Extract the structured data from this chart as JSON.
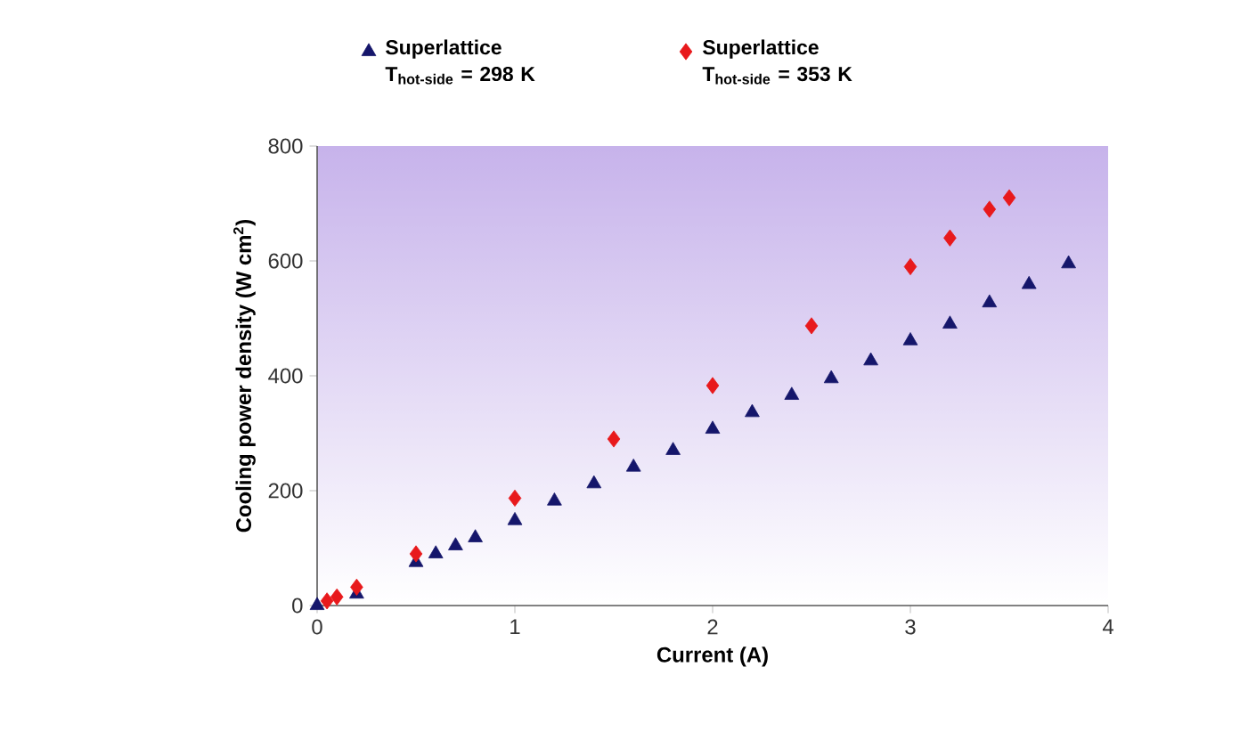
{
  "chart_data": {
    "type": "scatter",
    "xlabel": "Current (A)",
    "ylabel": "Cooling power density (W cm$^{2}$)",
    "xlim": [
      0,
      4
    ],
    "ylim": [
      0,
      800
    ],
    "xticks": [
      0,
      1,
      2,
      3,
      4
    ],
    "yticks": [
      0,
      200,
      400,
      600,
      800
    ],
    "grid": false,
    "legend": "top",
    "series": [
      {
        "name": "Superlattice T$_{hot-side}$ = 298 K",
        "color": "#15166b",
        "marker": "triangle",
        "x": [
          0,
          0.1,
          0.2,
          0.5,
          0.6,
          0.7,
          0.8,
          1.0,
          1.2,
          1.4,
          1.6,
          1.8,
          2.0,
          2.2,
          2.4,
          2.6,
          2.8,
          3.0,
          3.2,
          3.4,
          3.6,
          3.8
        ],
        "values": [
          0,
          null,
          20,
          75,
          90,
          104,
          118,
          148,
          182,
          212,
          241,
          270,
          307,
          336,
          366,
          395,
          426,
          461,
          490,
          527,
          559,
          595
        ]
      },
      {
        "name": "Superlattice T$_{hot-side}$ = 353 K",
        "color": "#e8191c",
        "marker": "diamond",
        "x": [
          0.05,
          0.1,
          0.2,
          0.5,
          1.0,
          1.5,
          2.0,
          2.5,
          3.0,
          3.2,
          3.4,
          3.5
        ],
        "values": [
          8,
          15,
          32,
          90,
          187,
          290,
          383,
          487,
          590,
          640,
          690,
          710
        ]
      }
    ]
  }
}
